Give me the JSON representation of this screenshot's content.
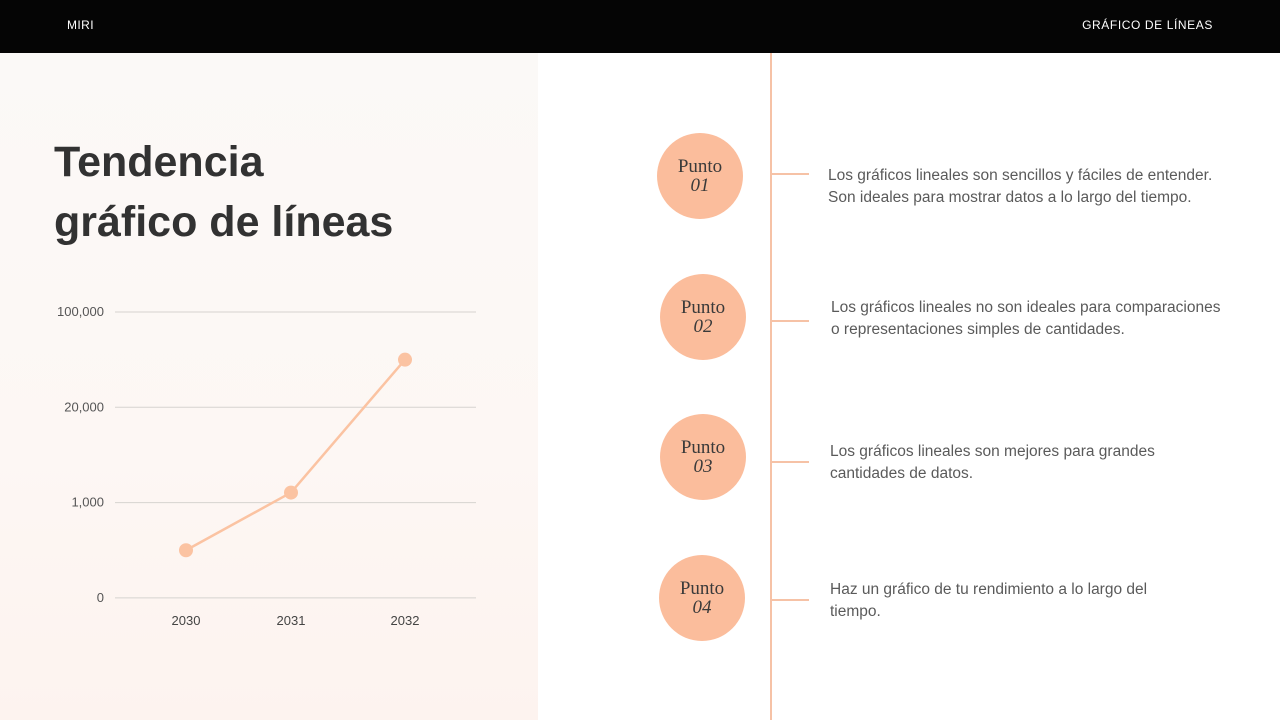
{
  "header": {
    "brand": "MIRI",
    "section": "GRÁFICO DE LÍNEAS"
  },
  "title": {
    "line1": "Tendencia",
    "line2": "gráfico de líneas"
  },
  "chart_data": {
    "type": "line",
    "categories": [
      "2030",
      "2031",
      "2032"
    ],
    "y_tick_labels": [
      "0",
      "1,000",
      "20,000",
      "100,000"
    ],
    "values": [
      500,
      3000,
      60000
    ],
    "grid": true,
    "colors": {
      "series": "#fbc3a2",
      "grid": "#d6d3d0"
    }
  },
  "points": [
    {
      "word": "Punto",
      "number": "01",
      "text_1": "Los gráficos lineales son sencillos y fáciles de entender.",
      "text_2": "Son ideales para mostrar datos a lo largo del tiempo."
    },
    {
      "word": "Punto",
      "number": "02",
      "text_1": "Los gráficos lineales no son ideales para comparaciones",
      "text_2": "o representaciones simples de cantidades."
    },
    {
      "word": "Punto",
      "number": "03",
      "text_1": "Los gráficos lineales son mejores para grandes",
      "text_2": "cantidades de datos."
    },
    {
      "word": "Punto",
      "number": "04",
      "text_1": "Haz un gráfico de tu rendimiento a lo largo del",
      "text_2": "tiempo."
    }
  ],
  "colors": {
    "accent": "#fbbd9c",
    "topbar": "#050505",
    "heading": "#323232"
  }
}
